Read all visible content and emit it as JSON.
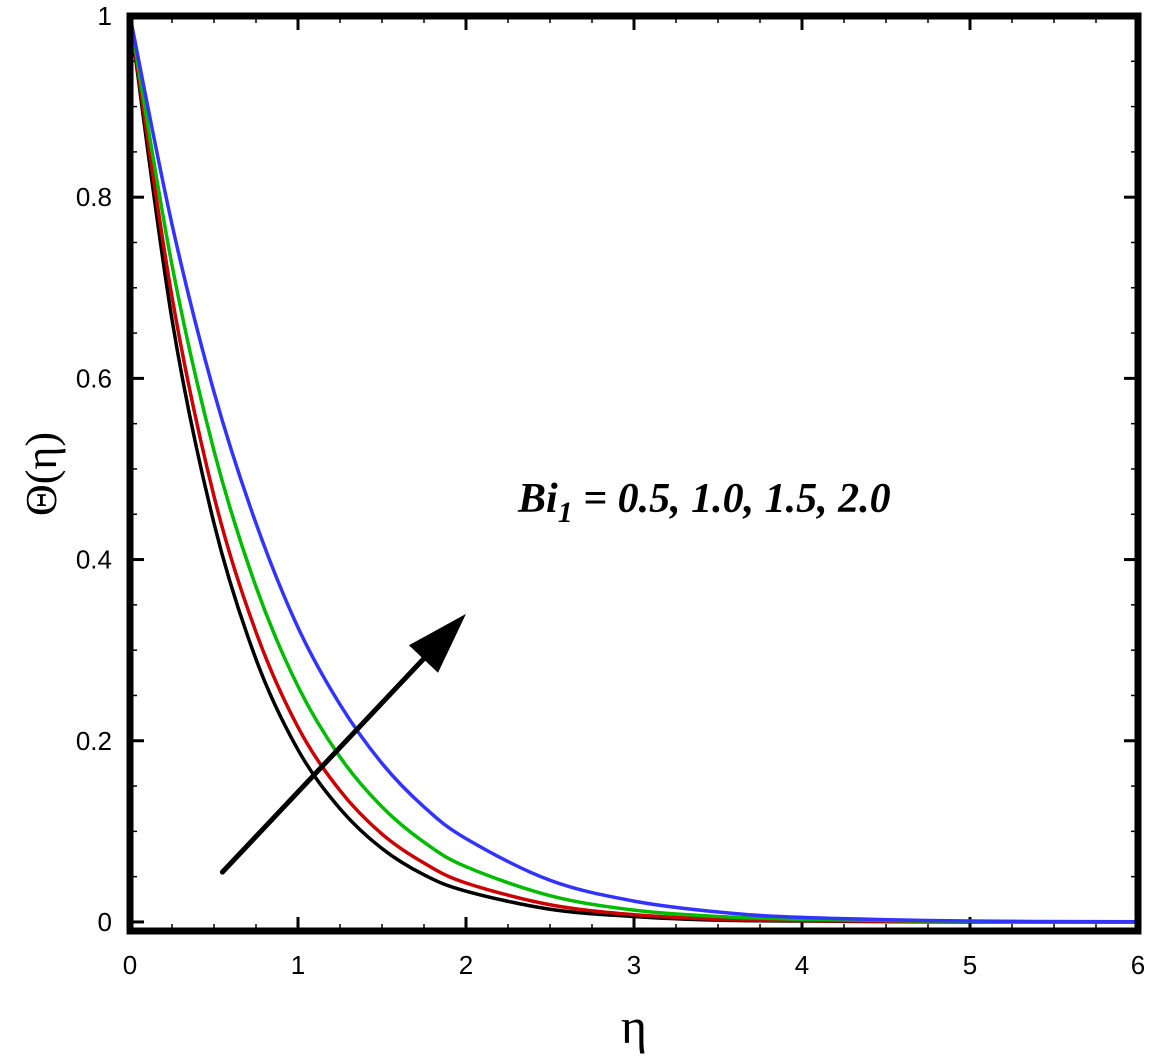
{
  "chart_data": {
    "type": "line",
    "title": "",
    "xlabel": "η",
    "ylabel": "Θ(η)",
    "xlim": [
      0,
      6
    ],
    "ylim": [
      -0.01,
      1.0
    ],
    "x_ticks": [
      "0",
      "1",
      "2",
      "3",
      "4",
      "5",
      "6"
    ],
    "y_ticks": [
      "0",
      "0.2",
      "0.4",
      "0.6",
      "0.8",
      "1"
    ],
    "grid": false,
    "legend": "none",
    "x": [
      0,
      0.25,
      0.5,
      0.75,
      1.0,
      1.25,
      1.5,
      1.75,
      2.0,
      2.5,
      3.0,
      3.5,
      4.0,
      5.0,
      6.0
    ],
    "series": [
      {
        "color": "#000000",
        "values": [
          1.0,
          0.665,
          0.44,
          0.29,
          0.19,
          0.125,
          0.081,
          0.052,
          0.034,
          0.014,
          0.006,
          0.002,
          0.001,
          0.0,
          0.0
        ]
      },
      {
        "color": "#cc0000",
        "values": [
          1.0,
          0.69,
          0.47,
          0.32,
          0.215,
          0.145,
          0.097,
          0.065,
          0.043,
          0.019,
          0.008,
          0.003,
          0.0015,
          0.0003,
          0.0
        ]
      },
      {
        "color": "#00bb00",
        "values": [
          1.0,
          0.725,
          0.52,
          0.37,
          0.26,
          0.182,
          0.127,
          0.088,
          0.061,
          0.029,
          0.013,
          0.006,
          0.003,
          0.0006,
          0.0001
        ]
      },
      {
        "color": "#3333ff",
        "values": [
          1.0,
          0.77,
          0.585,
          0.44,
          0.325,
          0.24,
          0.175,
          0.127,
          0.092,
          0.046,
          0.023,
          0.011,
          0.005,
          0.001,
          0.0002
        ]
      }
    ],
    "annotation": {
      "text_main": "Bi",
      "text_sub": "1",
      "text_rest": " = 0.5, 1.0, 1.5, 2.0",
      "arrow_from": [
        0.55,
        0.055
      ],
      "arrow_to": [
        2.0,
        0.34
      ],
      "arrow_direction": "increasing Bi"
    }
  }
}
